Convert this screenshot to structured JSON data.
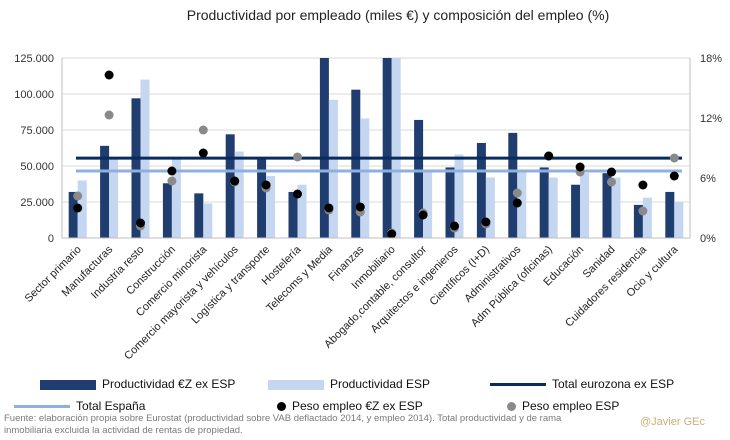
{
  "chart_data": {
    "type": "bar",
    "title": "Productividad por empleado (miles €) y composición del empleo (%)",
    "categories": [
      "Sector primario",
      "Manufacturas",
      "Industria resto",
      "Construcción",
      "Comercio minorista",
      "Comercio mayorista y vehículos",
      "Logística y transporte",
      "Hostelería",
      "Telecoms y Media",
      "Finanzas",
      "Inmobiliario",
      "Abogado,contable, consultor",
      "Arquitectos e ingenieros",
      "Científicos (I+D)",
      "Administrativos",
      "Adm Pública (oficinas)",
      "Educación",
      "Sanidad",
      "Cuidadores residencia",
      "Ocio y cultura"
    ],
    "y_left": {
      "ylim": [
        0,
        125000
      ],
      "ticks": [
        "0",
        "25.000",
        "50.000",
        "75.000",
        "100.000",
        "125.000"
      ],
      "tick_values": [
        0,
        25000,
        50000,
        75000,
        100000,
        125000
      ]
    },
    "y_right": {
      "ylim": [
        0,
        18
      ],
      "ticks": [
        "0%",
        "6%",
        "12%",
        "18%"
      ],
      "tick_values": [
        0,
        6,
        12,
        18
      ]
    },
    "series": [
      {
        "name": "Productividad €Z ex ESP",
        "type": "bar",
        "axis": "left",
        "color": "#1f3d6e",
        "values": [
          32000,
          64000,
          97000,
          38000,
          31000,
          72000,
          55000,
          32000,
          125000,
          103000,
          125000,
          82000,
          49000,
          66000,
          73000,
          49000,
          37000,
          45000,
          23000,
          32000
        ]
      },
      {
        "name": "Productividad ESP",
        "type": "bar",
        "axis": "left",
        "color": "#c5d6f0",
        "values": [
          40000,
          55000,
          110000,
          55000,
          24000,
          60000,
          43000,
          37000,
          96000,
          83000,
          125000,
          47000,
          58000,
          42000,
          47000,
          42000,
          45000,
          42000,
          28000,
          25000
        ]
      },
      {
        "name": "Total eurozona ex ESP",
        "type": "hline",
        "axis": "left",
        "color": "#0a2b5e",
        "value": 55500
      },
      {
        "name": "Total España",
        "type": "hline",
        "axis": "left",
        "color": "#8fb0dc",
        "value": 46500
      },
      {
        "name": "Peso empleo €Z ex ESP",
        "type": "scatter",
        "axis": "right",
        "color": "#000000",
        "values": [
          3.0,
          16.3,
          1.5,
          6.7,
          8.5,
          5.7,
          5.3,
          4.4,
          3.0,
          3.1,
          0.4,
          2.3,
          1.2,
          1.6,
          3.5,
          8.2,
          7.1,
          6.6,
          5.3,
          6.2
        ]
      },
      {
        "name": "Peso empleo ESP",
        "type": "scatter",
        "axis": "right",
        "color": "#8a8a8a",
        "values": [
          4.2,
          12.3,
          1.2,
          5.7,
          10.8,
          5.6,
          5.0,
          8.1,
          2.8,
          2.6,
          0.5,
          2.5,
          1.0,
          1.4,
          4.5,
          8.2,
          6.6,
          5.6,
          2.7,
          8.0
        ]
      }
    ]
  },
  "source": "Fuente: elaboración propia sobre Eurostat (productividad sobre VAB deflactado 2014, y empleo 2014). Total productividad y de rama inmobiliaria excluida la actividad de rentas de propiedad.",
  "credit": "@Javier GEc"
}
